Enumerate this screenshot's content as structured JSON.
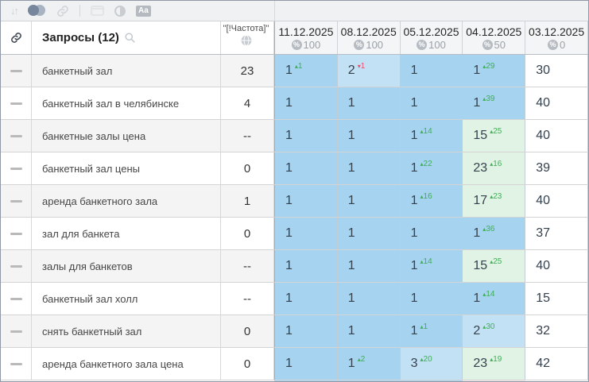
{
  "toolbar": {
    "aa_label": "Aa",
    "icons": [
      "sort-icon",
      "compare-circles-icon",
      "link-icon",
      "separator",
      "panel-icon",
      "contrast-icon",
      "text-style-icon"
    ]
  },
  "header": {
    "queries_title": "Запросы (12)",
    "frequency_label": "\"[!Частота]\"",
    "percent_symbol": "%",
    "dates": [
      {
        "date": "11.12.2025",
        "percent": "100"
      },
      {
        "date": "08.12.2025",
        "percent": "100"
      },
      {
        "date": "05.12.2025",
        "percent": "100"
      },
      {
        "date": "04.12.2025",
        "percent": "50"
      },
      {
        "date": "03.12.2025",
        "percent": "0"
      }
    ]
  },
  "legend": {
    "up_arrow": "▴",
    "down_arrow": "▾"
  },
  "colors": {
    "top1": "#a6d3ef",
    "top3": "#c3e1f5",
    "top30": "#e0f3e4",
    "none": "#ffffff",
    "dropped": "#f6e9ec",
    "change_up": "#3fae57",
    "change_down": "#ee4d6e"
  },
  "rows": [
    {
      "query": "банкетный зал",
      "frequency": "23",
      "positions": [
        {
          "value": "1",
          "change": "1",
          "dir": "up",
          "bg": "top1"
        },
        {
          "value": "2",
          "change": "1",
          "dir": "down",
          "bg": "top3"
        },
        {
          "value": "1",
          "bg": "top1"
        },
        {
          "value": "1",
          "change": "29",
          "dir": "up",
          "bg": "top1"
        },
        {
          "value": "30",
          "bg": "none"
        }
      ]
    },
    {
      "query": "банкетный зал в челябинске",
      "frequency": "4",
      "positions": [
        {
          "value": "1",
          "bg": "top1"
        },
        {
          "value": "1",
          "bg": "top1"
        },
        {
          "value": "1",
          "bg": "top1"
        },
        {
          "value": "1",
          "change": "39",
          "dir": "up",
          "bg": "top1"
        },
        {
          "value": "40",
          "bg": "none"
        }
      ]
    },
    {
      "query": "банкетные залы цена",
      "frequency": "--",
      "positions": [
        {
          "value": "1",
          "bg": "top1"
        },
        {
          "value": "1",
          "bg": "top1"
        },
        {
          "value": "1",
          "change": "14",
          "dir": "up",
          "bg": "top1"
        },
        {
          "value": "15",
          "change": "25",
          "dir": "up",
          "bg": "top30"
        },
        {
          "value": "40",
          "bg": "none"
        }
      ]
    },
    {
      "query": "банкетный зал цены",
      "frequency": "0",
      "positions": [
        {
          "value": "1",
          "bg": "top1"
        },
        {
          "value": "1",
          "bg": "top1"
        },
        {
          "value": "1",
          "change": "22",
          "dir": "up",
          "bg": "top1"
        },
        {
          "value": "23",
          "change": "16",
          "dir": "up",
          "bg": "top30"
        },
        {
          "value": "39",
          "bg": "none"
        }
      ]
    },
    {
      "query": "аренда банкетного зала",
      "frequency": "1",
      "positions": [
        {
          "value": "1",
          "bg": "top1"
        },
        {
          "value": "1",
          "bg": "top1"
        },
        {
          "value": "1",
          "change": "16",
          "dir": "up",
          "bg": "top1"
        },
        {
          "value": "17",
          "change": "23",
          "dir": "up",
          "bg": "top30"
        },
        {
          "value": "40",
          "bg": "none"
        }
      ]
    },
    {
      "query": "зал для банкета",
      "frequency": "0",
      "positions": [
        {
          "value": "1",
          "bg": "top1"
        },
        {
          "value": "1",
          "bg": "top1"
        },
        {
          "value": "1",
          "bg": "top1"
        },
        {
          "value": "1",
          "change": "36",
          "dir": "up",
          "bg": "top1"
        },
        {
          "value": "37",
          "bg": "none"
        }
      ]
    },
    {
      "query": "залы для банкетов",
      "frequency": "--",
      "positions": [
        {
          "value": "1",
          "bg": "top1"
        },
        {
          "value": "1",
          "bg": "top1"
        },
        {
          "value": "1",
          "change": "14",
          "dir": "up",
          "bg": "top1"
        },
        {
          "value": "15",
          "change": "25",
          "dir": "up",
          "bg": "top30"
        },
        {
          "value": "40",
          "bg": "none"
        }
      ]
    },
    {
      "query": "банкетный зал холл",
      "frequency": "--",
      "positions": [
        {
          "value": "1",
          "bg": "top1"
        },
        {
          "value": "1",
          "bg": "top1"
        },
        {
          "value": "1",
          "bg": "top1"
        },
        {
          "value": "1",
          "change": "14",
          "dir": "up",
          "bg": "top1"
        },
        {
          "value": "15",
          "bg": "none"
        }
      ]
    },
    {
      "query": "снять банкетный зал",
      "frequency": "0",
      "positions": [
        {
          "value": "1",
          "bg": "top1"
        },
        {
          "value": "1",
          "bg": "top1"
        },
        {
          "value": "1",
          "change": "1",
          "dir": "up",
          "bg": "top1"
        },
        {
          "value": "2",
          "change": "30",
          "dir": "up",
          "bg": "top3"
        },
        {
          "value": "32",
          "bg": "none"
        }
      ]
    },
    {
      "query": "аренда банкетного зала цена",
      "frequency": "0",
      "positions": [
        {
          "value": "1",
          "bg": "top1"
        },
        {
          "value": "1",
          "change": "2",
          "dir": "up",
          "bg": "top1"
        },
        {
          "value": "3",
          "change": "20",
          "dir": "up",
          "bg": "top3"
        },
        {
          "value": "23",
          "change": "19",
          "dir": "up",
          "bg": "top30"
        },
        {
          "value": "42",
          "bg": "none"
        }
      ]
    }
  ],
  "partial_row": {
    "cells": [
      "none",
      "none",
      "none",
      "top1",
      "top1",
      "top1",
      "dropped",
      "none"
    ]
  }
}
